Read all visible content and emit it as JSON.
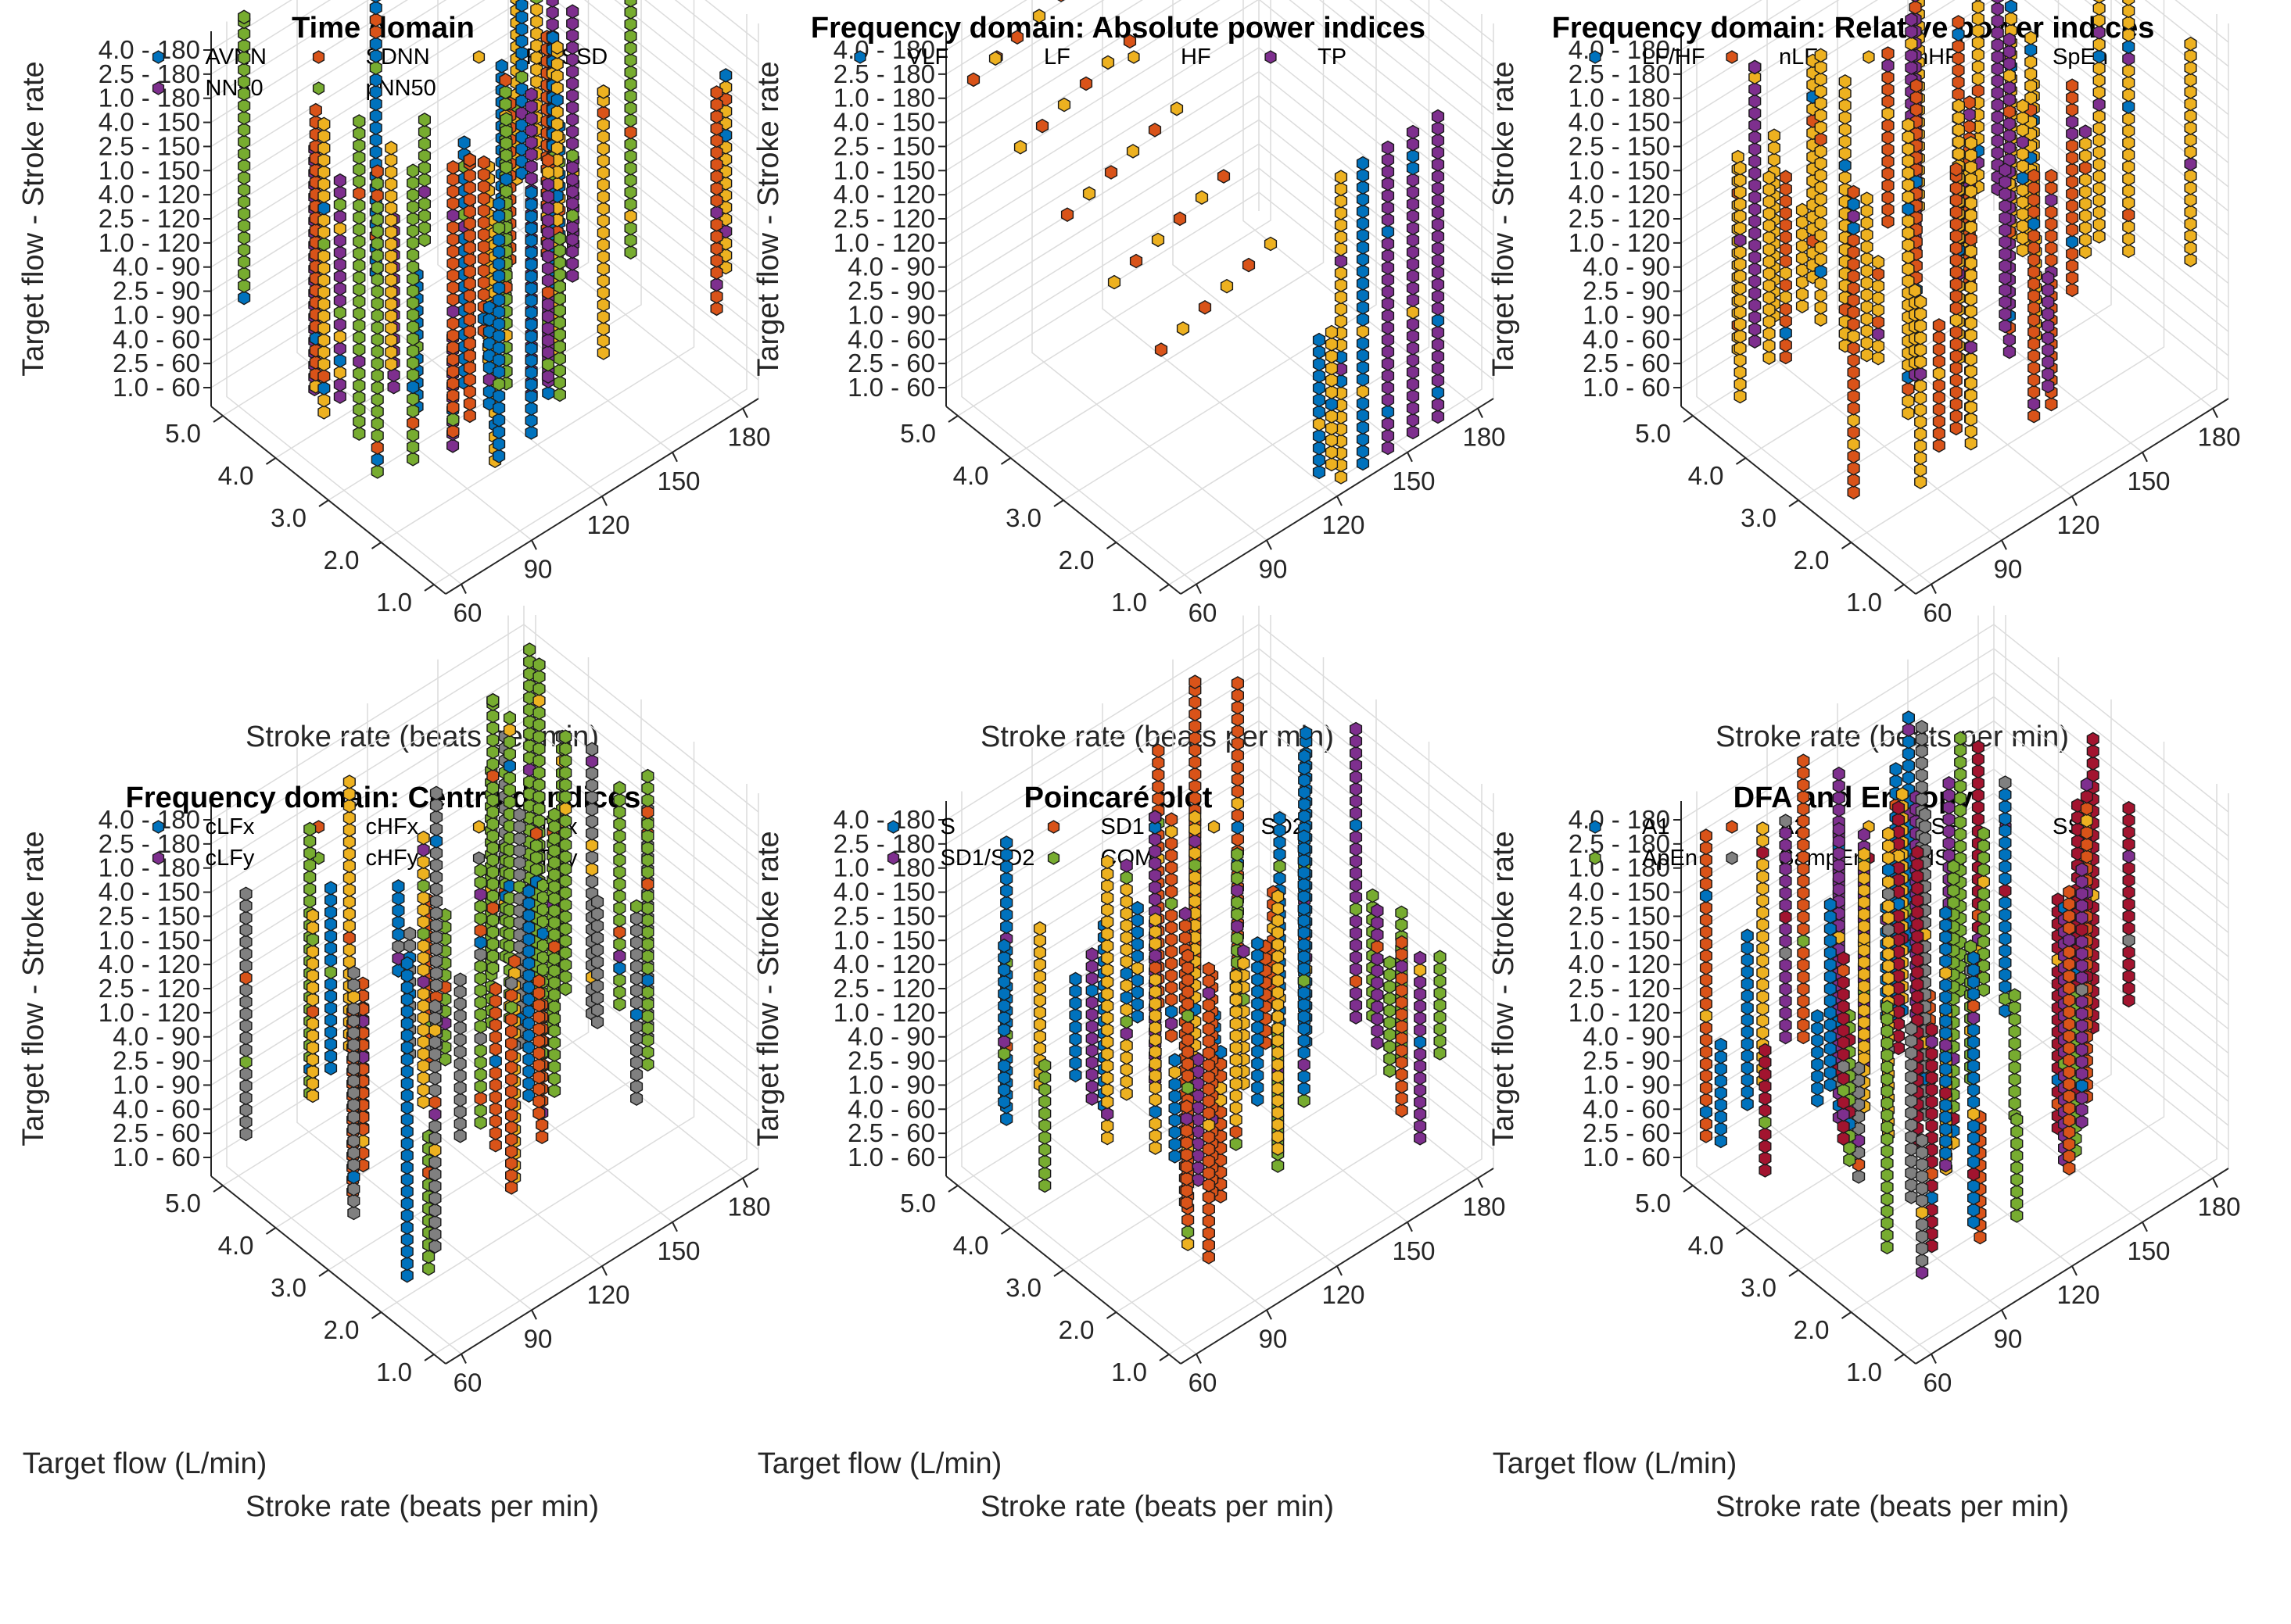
{
  "figure": {
    "shared_axes": {
      "z_title": "Target flow - Stroke rate",
      "x_title": "Stroke rate (beats per min)",
      "y_title": "Target flow (L/min)"
    }
  },
  "chart_data": [
    {
      "type": "scatter3d",
      "title": "Time domain",
      "xlabel": "Stroke rate (beats per min)",
      "ylabel": "Target flow (L/min)",
      "zlabel": "Target flow - Stroke rate",
      "x_ticks": [
        "60",
        "90",
        "120",
        "150",
        "180"
      ],
      "y_ticks": [
        "1.0",
        "2.0",
        "3.0",
        "4.0",
        "5.0"
      ],
      "z_ticks": [
        "1.0 - 60",
        "2.5 - 60",
        "4.0 - 60",
        "1.0 - 90",
        "2.5 - 90",
        "4.0 - 90",
        "1.0 - 120",
        "2.5 - 120",
        "4.0 - 120",
        "1.0 - 150",
        "2.5 - 150",
        "4.0 - 150",
        "1.0 - 180",
        "2.5 - 180",
        "4.0 - 180"
      ],
      "legend_columns": 3,
      "series": [
        {
          "name": "AVNN",
          "color": "#0072BD"
        },
        {
          "name": "SDNN",
          "color": "#D95319"
        },
        {
          "name": "RMSSD",
          "color": "#EDB120"
        },
        {
          "name": "NN50",
          "color": "#7E2F8E"
        },
        {
          "name": "pNN50",
          "color": "#77AC30"
        }
      ]
    },
    {
      "type": "scatter3d",
      "title": "Frequency domain: Absolute power indices",
      "xlabel": "Stroke rate (beats per min)",
      "ylabel": "Target flow (L/min)",
      "zlabel": "Target flow - Stroke rate",
      "x_ticks": [
        "60",
        "90",
        "120",
        "150",
        "180"
      ],
      "y_ticks": [
        "1.0",
        "2.0",
        "3.0",
        "4.0",
        "5.0"
      ],
      "z_ticks": [
        "1.0 - 60",
        "2.5 - 60",
        "4.0 - 60",
        "1.0 - 90",
        "2.5 - 90",
        "4.0 - 90",
        "1.0 - 120",
        "2.5 - 120",
        "4.0 - 120",
        "1.0 - 150",
        "2.5 - 150",
        "4.0 - 150",
        "1.0 - 180",
        "2.5 - 180",
        "4.0 - 180"
      ],
      "legend_columns": 4,
      "series": [
        {
          "name": "VLF",
          "color": "#0072BD"
        },
        {
          "name": "LF",
          "color": "#D95319"
        },
        {
          "name": "HF",
          "color": "#EDB120"
        },
        {
          "name": "TP",
          "color": "#7E2F8E"
        }
      ]
    },
    {
      "type": "scatter3d",
      "title": "Frequency domain: Relative power indices",
      "xlabel": "Stroke rate (beats per min)",
      "ylabel": "Target flow (L/min)",
      "zlabel": "Target flow - Stroke rate",
      "x_ticks": [
        "60",
        "90",
        "120",
        "150",
        "180"
      ],
      "y_ticks": [
        "1.0",
        "2.0",
        "3.0",
        "4.0",
        "5.0"
      ],
      "z_ticks": [
        "1.0 - 60",
        "2.5 - 60",
        "4.0 - 60",
        "1.0 - 90",
        "2.5 - 90",
        "4.0 - 90",
        "1.0 - 120",
        "2.5 - 120",
        "4.0 - 120",
        "1.0 - 150",
        "2.5 - 150",
        "4.0 - 150",
        "1.0 - 180",
        "2.5 - 180",
        "4.0 - 180"
      ],
      "legend_columns": 4,
      "series": [
        {
          "name": "LF/HF",
          "color": "#0072BD"
        },
        {
          "name": "nLF",
          "color": "#D95319"
        },
        {
          "name": "nHF",
          "color": "#EDB120"
        },
        {
          "name": "SpEn",
          "color": "#7E2F8E"
        }
      ]
    },
    {
      "type": "scatter3d",
      "title": "Frequency domain: Centroid indices",
      "xlabel": "Stroke rate (beats per min)",
      "ylabel": "Target flow (L/min)",
      "zlabel": "Target flow - Stroke rate",
      "x_ticks": [
        "60",
        "90",
        "120",
        "150",
        "180"
      ],
      "y_ticks": [
        "1.0",
        "2.0",
        "3.0",
        "4.0",
        "5.0"
      ],
      "z_ticks": [
        "1.0 - 60",
        "2.5 - 60",
        "4.0 - 60",
        "1.0 - 90",
        "2.5 - 90",
        "4.0 - 90",
        "1.0 - 120",
        "2.5 - 120",
        "4.0 - 120",
        "1.0 - 150",
        "2.5 - 150",
        "4.0 - 150",
        "1.0 - 180",
        "2.5 - 180",
        "4.0 - 180"
      ],
      "legend_columns": 3,
      "series": [
        {
          "name": "cLFx",
          "color": "#0072BD"
        },
        {
          "name": "cHFx",
          "color": "#D95319"
        },
        {
          "name": "cTPx",
          "color": "#EDB120"
        },
        {
          "name": "cLFy",
          "color": "#7E2F8E"
        },
        {
          "name": "cHFy",
          "color": "#77AC30"
        },
        {
          "name": "cTPy",
          "color": "#808080"
        }
      ]
    },
    {
      "type": "scatter3d",
      "title": "Poincaré plot",
      "xlabel": "Stroke rate (beats per min)",
      "ylabel": "Target flow (L/min)",
      "zlabel": "Target flow - Stroke rate",
      "x_ticks": [
        "60",
        "90",
        "120",
        "150",
        "180"
      ],
      "y_ticks": [
        "1.0",
        "2.0",
        "3.0",
        "4.0",
        "5.0"
      ],
      "z_ticks": [
        "1.0 - 60",
        "2.5 - 60",
        "4.0 - 60",
        "1.0 - 90",
        "2.5 - 90",
        "4.0 - 90",
        "1.0 - 120",
        "2.5 - 120",
        "4.0 - 120",
        "1.0 - 150",
        "2.5 - 150",
        "4.0 - 150",
        "1.0 - 180",
        "2.5 - 180",
        "4.0 - 180"
      ],
      "legend_columns": 3,
      "series": [
        {
          "name": "S",
          "color": "#0072BD"
        },
        {
          "name": "SD1",
          "color": "#D95319"
        },
        {
          "name": "SD2",
          "color": "#EDB120"
        },
        {
          "name": "SD1/SD2",
          "color": "#7E2F8E"
        },
        {
          "name": "COM",
          "color": "#77AC30"
        }
      ]
    },
    {
      "type": "scatter3d",
      "title": "DFA and Entropy",
      "xlabel": "Stroke rate (beats per min)",
      "ylabel": "Target flow (L/min)",
      "zlabel": "Target flow - Stroke rate",
      "x_ticks": [
        "60",
        "90",
        "120",
        "150",
        "180"
      ],
      "y_ticks": [
        "1.0",
        "2.0",
        "3.0",
        "4.0",
        "5.0"
      ],
      "z_ticks": [
        "1.0 - 60",
        "2.5 - 60",
        "4.0 - 60",
        "1.0 - 90",
        "2.5 - 90",
        "4.0 - 90",
        "1.0 - 120",
        "2.5 - 120",
        "4.0 - 120",
        "1.0 - 150",
        "2.5 - 150",
        "4.0 - 150",
        "1.0 - 180",
        "2.5 - 180",
        "4.0 - 180"
      ],
      "legend_columns": 4,
      "series": [
        {
          "name": "A1",
          "color": "#0072BD"
        },
        {
          "name": "A2",
          "color": "#D95319"
        },
        {
          "name": "BSE",
          "color": "#EDB120"
        },
        {
          "name": "SSE",
          "color": "#7E2F8E"
        },
        {
          "name": "ApEn",
          "color": "#77AC30"
        },
        {
          "name": "SampEn",
          "color": "#808080"
        },
        {
          "name": "MSE",
          "color": "#A2142F"
        }
      ]
    }
  ]
}
